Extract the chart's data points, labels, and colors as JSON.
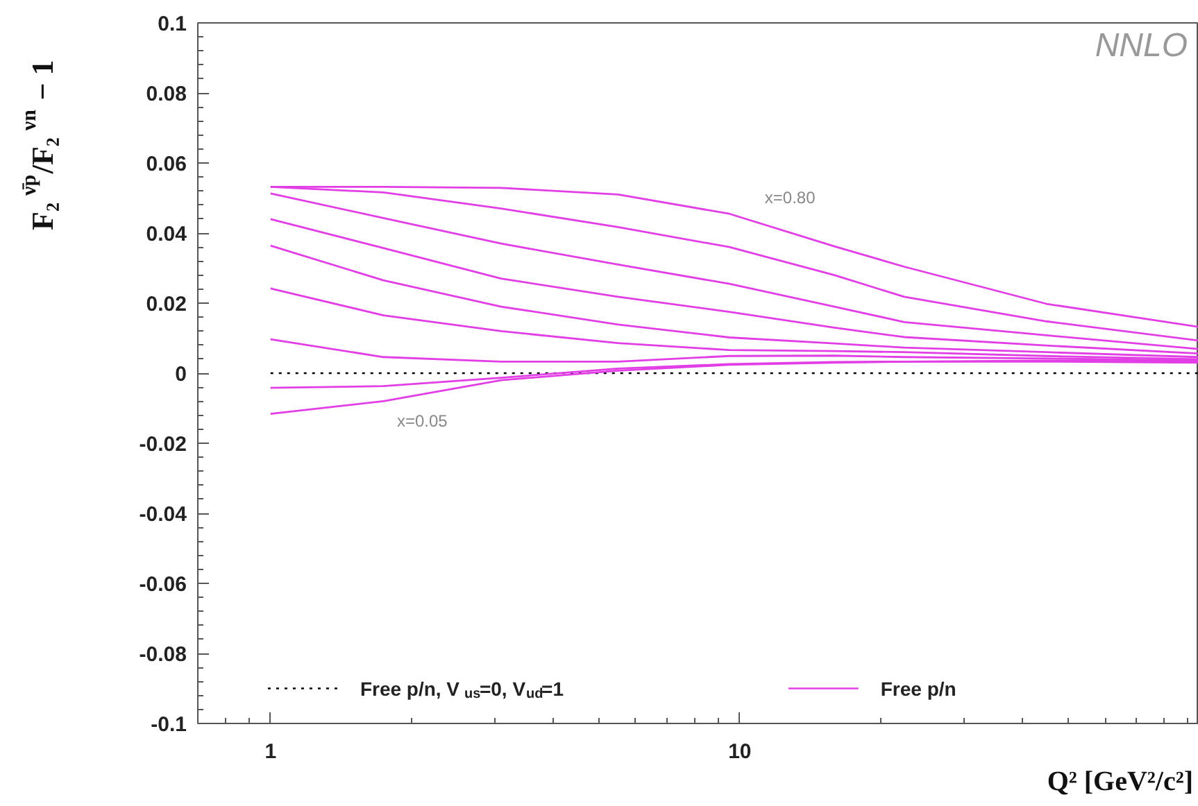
{
  "chart_data": {
    "type": "line",
    "xlabel": "Q² [GeV²/c²]",
    "ylabel": "F₂$^{ν̄p}$/F₂$^{νn}$ − 1",
    "log": "x",
    "xlim": [
      0.7,
      95
    ],
    "xticks": [
      1,
      10
    ],
    "ylim": [
      -0.1,
      0.1
    ],
    "yticks": [
      -0.1,
      -0.08,
      -0.06,
      -0.04,
      -0.02,
      0,
      0.02,
      0.04,
      0.06,
      0.08,
      0.1
    ],
    "grid": false,
    "legend": "bottom",
    "marker": "none",
    "x": [
      1,
      1.74,
      3.1,
      5.5,
      9.5,
      15.9,
      22.4,
      45,
      95
    ],
    "annotations": [
      "NNLO",
      {
        "text": "x=0.80",
        "x": 11.3,
        "y": 0.0442
      },
      {
        "text": "x=0.05",
        "x": 1.86,
        "y": -0.0077
      }
    ],
    "series": [
      {
        "name": "Free p/n, V$_{us}$=0, V$_{ud}$=1",
        "color": "#000000",
        "line_style": "dotted",
        "x": [
          1,
          95
        ],
        "values": [
          0,
          0
        ]
      },
      {
        "name": "Free p/n",
        "color": "#e23ee6",
        "line_style": "solid",
        "values": [
          0.0532,
          0.0532,
          0.0529,
          0.051,
          0.0455,
          0.0362,
          0.0304,
          0.0198,
          0.0132
        ]
      },
      {
        "color": "#e23ee6",
        "line_style": "solid",
        "values": [
          0.0532,
          0.0516,
          0.047,
          0.0417,
          0.036,
          0.028,
          0.0218,
          0.0148,
          0.0093
        ]
      },
      {
        "color": "#e23ee6",
        "line_style": "solid",
        "values": [
          0.0513,
          0.0443,
          0.037,
          0.031,
          0.0255,
          0.019,
          0.0146,
          0.0108,
          0.0069
        ]
      },
      {
        "color": "#e23ee6",
        "line_style": "solid",
        "values": [
          0.044,
          0.0357,
          0.027,
          0.0218,
          0.0175,
          0.013,
          0.0103,
          0.0079,
          0.0056
        ]
      },
      {
        "color": "#e23ee6",
        "line_style": "solid",
        "values": [
          0.0364,
          0.0265,
          0.019,
          0.0139,
          0.0102,
          0.0085,
          0.0073,
          0.006,
          0.0046
        ]
      },
      {
        "color": "#e23ee6",
        "line_style": "solid",
        "values": [
          0.0242,
          0.0165,
          0.012,
          0.0086,
          0.0066,
          0.0063,
          0.006,
          0.0049,
          0.004
        ]
      },
      {
        "color": "#e23ee6",
        "line_style": "solid",
        "values": [
          0.0097,
          0.0046,
          0.0033,
          0.0033,
          0.0049,
          0.005,
          0.0046,
          0.0042,
          0.0036
        ]
      },
      {
        "color": "#e23ee6",
        "line_style": "solid",
        "values": [
          -0.0042,
          -0.0037,
          -0.0013,
          0.0013,
          0.0026,
          0.0032,
          0.0033,
          0.0036,
          0.0033
        ]
      },
      {
        "color": "#e23ee6",
        "line_style": "solid",
        "values": [
          -0.0116,
          -0.008,
          -0.002,
          0.0007,
          0.0024,
          0.003,
          0.0033,
          0.0033,
          0.003
        ]
      }
    ]
  }
}
